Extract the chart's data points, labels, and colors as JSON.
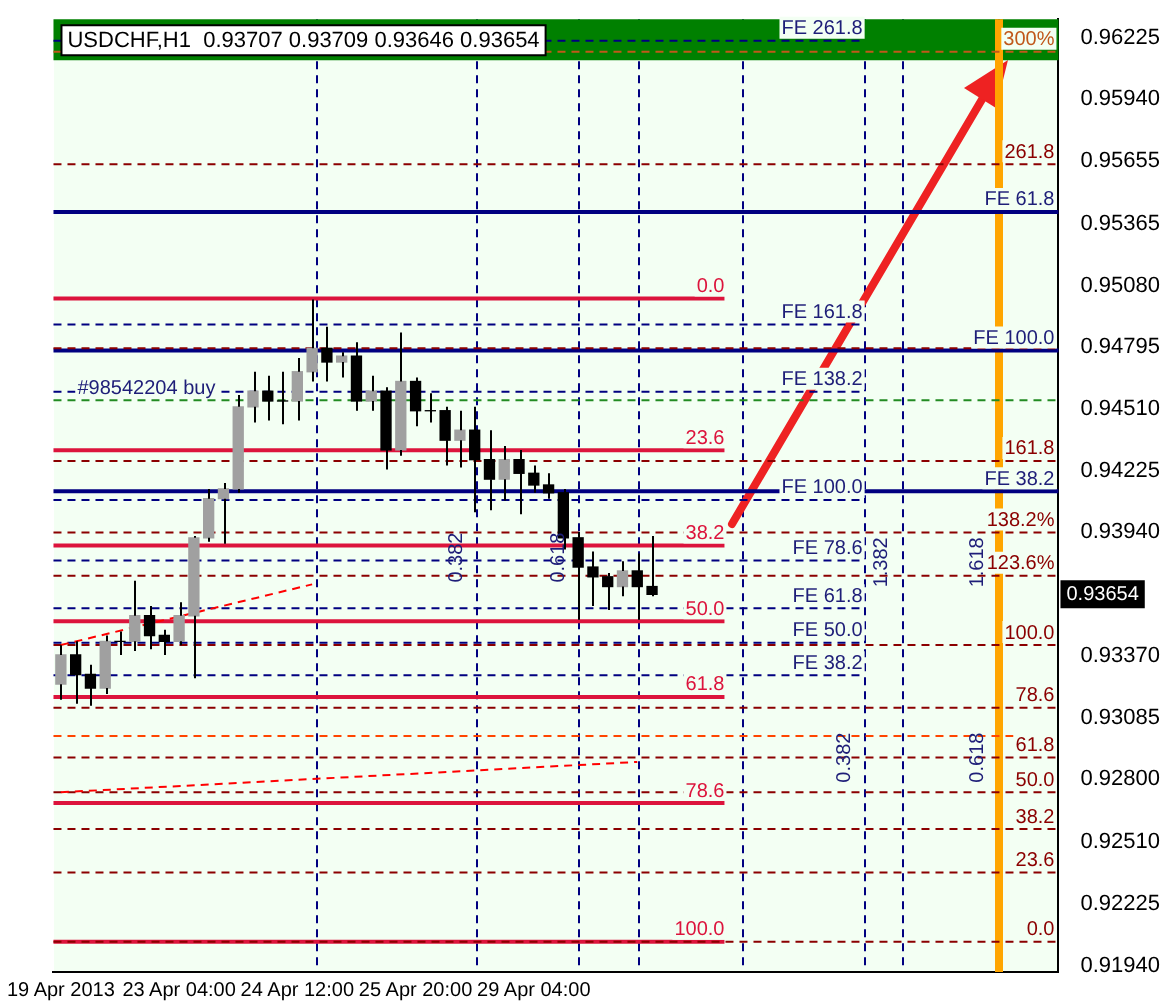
{
  "chart_data": {
    "type": "candlestick",
    "title": "USDCHF,H1  0.93707 0.93709 0.93646 0.93654",
    "color": "#000000",
    "colors": [
      "#a0a0a0",
      "#000000",
      "#000000",
      "#a0a0a0",
      "#000000",
      "#a0a0a0",
      "#000000",
      "#000000",
      "#a0a0a0",
      "#a0a0a0",
      "#a0a0a0",
      "#a0a0a0",
      "#a0a0a0",
      "#a0a0a0",
      "#000000",
      "#000000",
      "#a0a0a0",
      "#a0a0a0",
      "#000000",
      "#a0a0a0",
      "#000000",
      "#a0a0a0",
      "#000000",
      "#a0a0a0",
      "#000000",
      "#000000",
      "#000000",
      "#a0a0a0",
      "#000000",
      "#000000",
      "#a0a0a0",
      "#000000",
      "#000000",
      "#000000",
      "#000000",
      "#000000",
      "#000000",
      "#000000",
      "#a0a0a0",
      "#000000",
      "#000000",
      null,
      null,
      null,
      null,
      null,
      null,
      null,
      null,
      null,
      null,
      null,
      null,
      null,
      null,
      null,
      null,
      null,
      null,
      null,
      null,
      null,
      null,
      null,
      null,
      null,
      null,
      null
    ],
    "categories": [
      "19 Apr 2013",
      null,
      null,
      null,
      null,
      null,
      null,
      null,
      "23 Apr 04:00",
      null,
      null,
      null,
      null,
      null,
      null,
      null,
      "24 Apr 12:00",
      null,
      null,
      null,
      null,
      null,
      null,
      null,
      "25 Apr 20:00",
      null,
      null,
      null,
      null,
      null,
      null,
      null,
      "29 Apr 04:00",
      null,
      null,
      null,
      null,
      null,
      null,
      null,
      null,
      null,
      null,
      null,
      null,
      null,
      null,
      null,
      null,
      null,
      null,
      null,
      null,
      null,
      null,
      null,
      null,
      null,
      null,
      null,
      null,
      null,
      null,
      null,
      null,
      null,
      null,
      null
    ],
    "ohlc": [
      [
        0.93239,
        0.93419,
        0.93167,
        0.93374
      ],
      [
        0.93374,
        0.93437,
        0.93149,
        0.93284
      ],
      [
        0.93284,
        0.93329,
        0.9314,
        0.93221
      ],
      [
        0.93221,
        0.93464,
        0.93194,
        0.93437
      ],
      [
        0.93437,
        0.93482,
        0.93374,
        0.93437
      ],
      [
        0.93437,
        0.93717,
        0.93392,
        0.93555
      ],
      [
        0.93555,
        0.936,
        0.93401,
        0.93464
      ],
      [
        0.93464,
        0.93491,
        0.93374,
        0.93437
      ],
      [
        0.93437,
        0.93618,
        0.93419,
        0.93555
      ],
      [
        0.93555,
        0.93924,
        0.93266,
        0.93915
      ],
      [
        0.93915,
        0.94141,
        0.93897,
        0.94096
      ],
      [
        0.94096,
        0.94168,
        0.93888,
        0.94141
      ],
      [
        0.94141,
        0.94574,
        0.94123,
        0.9452
      ],
      [
        0.9452,
        0.94682,
        0.94448,
        0.94592
      ],
      [
        0.94592,
        0.94664,
        0.94457,
        0.94547
      ],
      [
        0.94547,
        0.94682,
        0.94439,
        0.94547
      ],
      [
        0.94547,
        0.94745,
        0.94457,
        0.94682
      ],
      [
        0.94682,
        0.95016,
        0.94637,
        0.9479
      ],
      [
        0.9479,
        0.9489,
        0.94637,
        0.94727
      ],
      [
        0.94727,
        0.94772,
        0.94655,
        0.94754
      ],
      [
        0.94754,
        0.94818,
        0.94502,
        0.94547
      ],
      [
        0.94547,
        0.94664,
        0.94502,
        0.94592
      ],
      [
        0.94592,
        0.9461,
        0.94231,
        0.94321
      ],
      [
        0.94321,
        0.94863,
        0.94294,
        0.94637
      ],
      [
        0.94637,
        0.94655,
        0.9443,
        0.94502
      ],
      [
        0.94502,
        0.94583,
        0.94448,
        0.94502
      ],
      [
        0.94502,
        0.9452,
        0.94249,
        0.94366
      ],
      [
        0.94366,
        0.94502,
        0.9424,
        0.94412
      ],
      [
        0.94412,
        0.9452,
        0.94033,
        0.94276
      ],
      [
        0.94276,
        0.94412,
        0.94042,
        0.94186
      ],
      [
        0.94186,
        0.94339,
        0.94087,
        0.94276
      ],
      [
        0.94276,
        0.94321,
        0.94024,
        0.94213
      ],
      [
        0.94213,
        0.94249,
        0.94123,
        0.94159
      ],
      [
        0.94159,
        0.94213,
        0.94096,
        0.94123
      ],
      [
        0.94123,
        0.94141,
        0.93861,
        0.93915
      ],
      [
        0.93915,
        0.93942,
        0.93537,
        0.9378
      ],
      [
        0.9378,
        0.93852,
        0.936,
        0.93735
      ],
      [
        0.93735,
        0.93753,
        0.93582,
        0.9369
      ],
      [
        0.9369,
        0.93807,
        0.93645,
        0.93762
      ],
      [
        0.93762,
        0.93843,
        0.93537,
        0.9369
      ],
      [
        0.9369,
        0.93924,
        0.93645,
        0.93654
      ],
      null,
      null,
      null,
      null,
      null,
      null,
      null,
      null,
      null,
      null,
      null,
      null,
      null,
      null,
      null,
      null,
      null,
      null,
      null,
      null,
      null,
      null,
      null,
      null,
      null,
      null,
      null
    ],
    "ylim": [
      0.9191,
      0.9631
    ],
    "yticks": [
      {
        "value": 0.9194,
        "label": "0.91940"
      },
      {
        "value": 0.92225,
        "label": "0.92225"
      },
      {
        "value": 0.9251,
        "label": "0.92510"
      },
      {
        "value": 0.928,
        "label": "0.92800"
      },
      {
        "value": 0.93085,
        "label": "0.93085"
      },
      {
        "value": 0.9337,
        "label": "0.93370"
      },
      {
        "value": 0.9394,
        "label": "0.93940"
      },
      {
        "value": 0.94225,
        "label": "0.94225"
      },
      {
        "value": 0.9451,
        "label": "0.94510"
      },
      {
        "value": 0.94795,
        "label": "0.94795"
      },
      {
        "value": 0.9508,
        "label": "0.95080"
      },
      {
        "value": 0.95365,
        "label": "0.95365"
      },
      {
        "value": 0.95655,
        "label": "0.95655"
      },
      {
        "value": 0.9594,
        "label": "0.95940"
      },
      {
        "value": 0.96225,
        "label": "0.96225"
      }
    ],
    "series": [
      {
        "type": "line",
        "color": "#ff0000",
        "line_style": "dashed",
        "values": [
          0.9342,
          null,
          null,
          null,
          null,
          null,
          null,
          null,
          null,
          null,
          null,
          null,
          null,
          null,
          null,
          null,
          null,
          0.937,
          null,
          null,
          null,
          null,
          null,
          null,
          null,
          null,
          null,
          null,
          null,
          null,
          null,
          null,
          null,
          null,
          null,
          null,
          null,
          null,
          null,
          null,
          null,
          null,
          null,
          null,
          null,
          null,
          null,
          null,
          null,
          null,
          null,
          null,
          null,
          null,
          null,
          null,
          null,
          null,
          null,
          null,
          null,
          null,
          null,
          null,
          null,
          null,
          null,
          null
        ]
      },
      {
        "type": "line",
        "color": "#ff0000",
        "line_style": "dashed",
        "values": [
          0.9274,
          null,
          null,
          null,
          null,
          null,
          null,
          null,
          null,
          null,
          null,
          null,
          null,
          null,
          null,
          null,
          null,
          null,
          null,
          null,
          null,
          null,
          null,
          null,
          null,
          null,
          null,
          null,
          null,
          null,
          null,
          null,
          null,
          null,
          null,
          null,
          null,
          null,
          null,
          0.9288,
          null,
          null,
          null,
          null,
          null,
          null,
          null,
          null,
          null,
          null,
          null,
          null,
          null,
          null,
          null,
          null,
          null,
          null,
          null,
          null,
          null,
          null,
          null,
          null,
          null,
          null,
          null,
          null
        ]
      }
    ],
    "ref_lines": [
      {
        "axis": "y",
        "value": 0.9502,
        "color": "#dc143c",
        "line_style": "solid"
      },
      {
        "axis": "y",
        "value": 0.9432,
        "color": "#dc143c",
        "line_style": "solid"
      },
      {
        "axis": "y",
        "value": 0.9388,
        "color": "#dc143c",
        "line_style": "solid"
      },
      {
        "axis": "y",
        "value": 0.9353,
        "color": "#dc143c",
        "line_style": "solid"
      },
      {
        "axis": "y",
        "value": 0.9318,
        "color": "#dc143c",
        "line_style": "solid"
      },
      {
        "axis": "y",
        "value": 0.9269,
        "color": "#dc143c",
        "line_style": "solid"
      },
      {
        "axis": "y",
        "value": 0.9205,
        "color": "#dc143c",
        "line_style": "solid"
      },
      {
        "axis": "y",
        "value": 0.9621,
        "label": "FE 261.8",
        "color": "#000080",
        "line_style": "dashed"
      },
      {
        "axis": "y",
        "value": 0.949,
        "label": "FE 161.8",
        "color": "#000080",
        "line_style": "dashed"
      },
      {
        "axis": "y",
        "value": 0.9459,
        "label": "FE 138.2",
        "color": "#000080",
        "line_style": "dashed"
      },
      {
        "axis": "y",
        "value": 0.9409,
        "label": "FE 100.0",
        "color": "#000080",
        "line_style": "dashed"
      },
      {
        "axis": "y",
        "value": 0.9381,
        "label": "FE 78.6",
        "color": "#000080",
        "line_style": "dashed"
      },
      {
        "axis": "y",
        "value": 0.9359,
        "label": "FE 61.8",
        "color": "#000080",
        "line_style": "dashed"
      },
      {
        "axis": "y",
        "value": 0.9343,
        "label": "FE 50.0",
        "color": "#000080",
        "line_style": "dashed"
      },
      {
        "axis": "y",
        "value": 0.9328,
        "label": "FE 38.2",
        "color": "#000080",
        "line_style": "dashed"
      },
      {
        "axis": "y",
        "value": 0.9542,
        "label": "FE 61.8",
        "color": "#000080",
        "line_style": "solid"
      },
      {
        "axis": "y",
        "value": 0.9478,
        "label": "FE 100.0",
        "color": "#000080",
        "line_style": "solid"
      },
      {
        "axis": "y",
        "value": 0.9413,
        "label": "FE 38.2",
        "color": "#000080",
        "line_style": "solid"
      },
      {
        "axis": "y",
        "value": 0.9616,
        "color": "#c0581a",
        "line_style": "dashed"
      },
      {
        "axis": "y",
        "value": 0.9564,
        "color": "#8b0000",
        "line_style": "dashed"
      },
      {
        "axis": "y",
        "value": 0.9479,
        "color": "#8b0000",
        "line_style": "dashed"
      },
      {
        "axis": "y",
        "value": 0.9427,
        "color": "#8b0000",
        "line_style": "dashed"
      },
      {
        "axis": "y",
        "value": 0.9394,
        "color": "#8b0000",
        "line_style": "dashed"
      },
      {
        "axis": "y",
        "value": 0.9374,
        "color": "#8b0000",
        "line_style": "dashed"
      },
      {
        "axis": "y",
        "value": 0.9342,
        "color": "#8b0000",
        "line_style": "dashed"
      },
      {
        "axis": "y",
        "value": 0.9313,
        "color": "#8b0000",
        "line_style": "dashed"
      },
      {
        "axis": "y",
        "value": 0.929,
        "color": "#8b0000",
        "line_style": "dashed"
      },
      {
        "axis": "y",
        "value": 0.9274,
        "color": "#8b0000",
        "line_style": "dashed"
      },
      {
        "axis": "y",
        "value": 0.9257,
        "color": "#8b0000",
        "line_style": "dashed"
      },
      {
        "axis": "y",
        "value": 0.9237,
        "color": "#8b0000",
        "line_style": "dashed"
      },
      {
        "axis": "y",
        "value": 0.9205,
        "color": "#8b0000",
        "line_style": "dashed"
      },
      {
        "axis": "y",
        "value": 0.9455,
        "label": "#98542204 buy",
        "color": "#228b22",
        "line_style": "dashed"
      },
      {
        "axis": "y",
        "value": 0.93,
        "color": "#ff4500",
        "line_style": "dashed"
      }
    ],
    "bands": [
      {
        "axis": "y",
        "from": 0.9612,
        "to": 0.9631,
        "color": "#008000"
      }
    ],
    "annotations": [
      "0.382",
      "0.618",
      "1.382",
      "1.618",
      "0.382",
      "0.618",
      "0.93654",
      {
        "text": "0.0",
        "y": 0.9502
      },
      {
        "text": "23.6",
        "y": 0.9432
      },
      {
        "text": "38.2",
        "y": 0.9388
      },
      {
        "text": "50.0",
        "y": 0.9353
      },
      {
        "text": "61.8",
        "y": 0.9318
      },
      {
        "text": "78.6",
        "y": 0.9269
      },
      {
        "text": "100.0",
        "y": 0.9205
      },
      {
        "text": "300%",
        "y": 0.9616
      },
      {
        "text": "261.8",
        "y": 0.9564
      },
      {
        "text": "161.8",
        "y": 0.9427
      },
      {
        "text": "138.2%",
        "y": 0.9394
      },
      {
        "text": "123.6%",
        "y": 0.9374
      },
      {
        "text": "100.0",
        "y": 0.9342
      },
      {
        "text": "78.6",
        "y": 0.9313
      },
      {
        "text": "61.8",
        "y": 0.929
      },
      {
        "text": "50.0",
        "y": 0.9274
      },
      {
        "text": "38.2",
        "y": 0.9257
      },
      {
        "text": "23.6",
        "y": 0.9237
      },
      {
        "text": "0.0",
        "y": 0.9205
      }
    ]
  }
}
